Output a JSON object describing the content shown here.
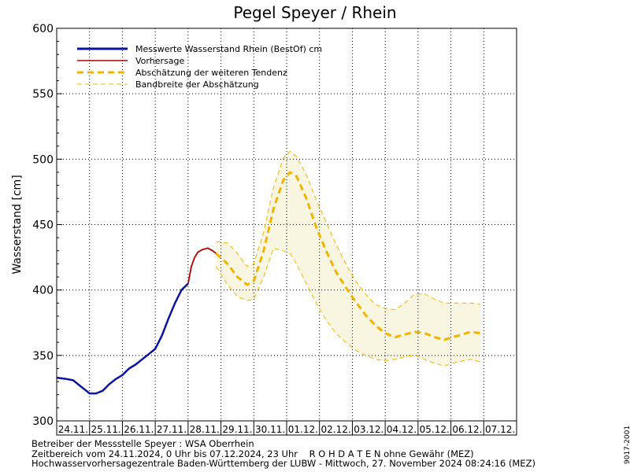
{
  "title": "Pegel Speyer / Rhein",
  "chart_data": {
    "type": "line",
    "title": "Pegel Speyer / Rhein",
    "ylabel": "Wasserstand [cm]",
    "xlabel": "",
    "ylim": [
      300,
      600
    ],
    "y_ticks": [
      300,
      350,
      400,
      450,
      500,
      550,
      600
    ],
    "x_range_days": [
      0,
      14
    ],
    "x_categories": [
      "24.11.",
      "25.11.",
      "26.11.",
      "27.11.",
      "28.11.",
      "29.11.",
      "30.11.",
      "01.12.",
      "02.12.",
      "03.12.",
      "04.12.",
      "05.12.",
      "06.12.",
      "07.12."
    ],
    "grid": true,
    "legend_position": "top-left",
    "legend": [
      {
        "label": "Messwerte Wasserstand Rhein (BestOf)   cm",
        "color": "#0a14a0",
        "style": "solid-thick"
      },
      {
        "label": "Vorhersage",
        "color": "#b00000",
        "style": "solid"
      },
      {
        "label": "Abschätzung der weiteren Tendenz",
        "color": "#f0b400",
        "style": "dashed-thick"
      },
      {
        "label": "Bandbreite der Abschätzung",
        "color": "#f0b400",
        "style": "dashed-thin"
      }
    ],
    "series": [
      {
        "name": "Messwerte Wasserstand Rhein (BestOf)   cm",
        "color": "#0a14a0",
        "x": [
          0,
          0.3,
          0.5,
          0.7,
          0.9,
          1.0,
          1.2,
          1.4,
          1.6,
          1.8,
          2.0,
          2.2,
          2.4,
          2.6,
          2.8,
          3.0,
          3.2,
          3.4,
          3.6,
          3.8,
          4.0
        ],
        "y": [
          333,
          332,
          331,
          327,
          323,
          321,
          321,
          323,
          328,
          332,
          335,
          340,
          343,
          347,
          351,
          355,
          365,
          378,
          390,
          400,
          405
        ]
      },
      {
        "name": "Vorhersage",
        "color": "#b00000",
        "x": [
          4.0,
          4.1,
          4.2,
          4.3,
          4.45,
          4.6,
          4.75,
          4.85
        ],
        "y": [
          405,
          418,
          425,
          429,
          431,
          432,
          430,
          428
        ]
      },
      {
        "name": "Abschätzung der weiteren Tendenz",
        "color": "#f0b400",
        "x": [
          4.85,
          5.2,
          5.5,
          5.8,
          6.0,
          6.3,
          6.6,
          6.9,
          7.1,
          7.3,
          7.6,
          7.9,
          8.2,
          8.5,
          8.8,
          9.1,
          9.4,
          9.7,
          10.0,
          10.3,
          10.6,
          10.9,
          11.2,
          11.5,
          11.8,
          12.2,
          12.6,
          12.9
        ],
        "y": [
          428,
          420,
          410,
          404,
          407,
          430,
          462,
          484,
          490,
          487,
          470,
          448,
          430,
          414,
          402,
          391,
          381,
          373,
          367,
          364,
          366,
          368,
          367,
          364,
          362,
          365,
          368,
          367
        ]
      }
    ],
    "band": {
      "name": "Bandbreite der Abschätzung",
      "color": "#f0b400",
      "fill": "#f8f6e0",
      "x": [
        4.85,
        5.2,
        5.5,
        5.8,
        6.0,
        6.3,
        6.6,
        6.9,
        7.1,
        7.3,
        7.6,
        7.9,
        8.2,
        8.5,
        8.8,
        9.1,
        9.4,
        9.7,
        10.0,
        10.3,
        10.6,
        10.9,
        11.2,
        11.5,
        11.8,
        12.2,
        12.6,
        12.9
      ],
      "upper": [
        437,
        436,
        428,
        418,
        420,
        444,
        478,
        501,
        506,
        502,
        488,
        469,
        452,
        435,
        420,
        407,
        397,
        389,
        386,
        385,
        390,
        397,
        397,
        393,
        390,
        390,
        390,
        389
      ],
      "lower": [
        418,
        404,
        395,
        392,
        393,
        410,
        432,
        430,
        428,
        420,
        405,
        390,
        377,
        367,
        360,
        354,
        350,
        347,
        346,
        347,
        349,
        350,
        347,
        344,
        342,
        345,
        347,
        345
      ]
    }
  },
  "footer": {
    "line1": "Betreiber der Messstelle Speyer : WSA Oberrhein",
    "line2": "Zeitbereich vom 24.11.2024, 0 Uhr bis 07.12.2024, 23 Uhr    R O H D A T E N ohne Gewähr (MEZ)",
    "line3": "Hochwasservorhersagezentrale Baden-Württemberg der LUBW - Mittwoch, 27. November 2024 08:24:16 (MEZ)"
  },
  "side_id": "9017-2001"
}
